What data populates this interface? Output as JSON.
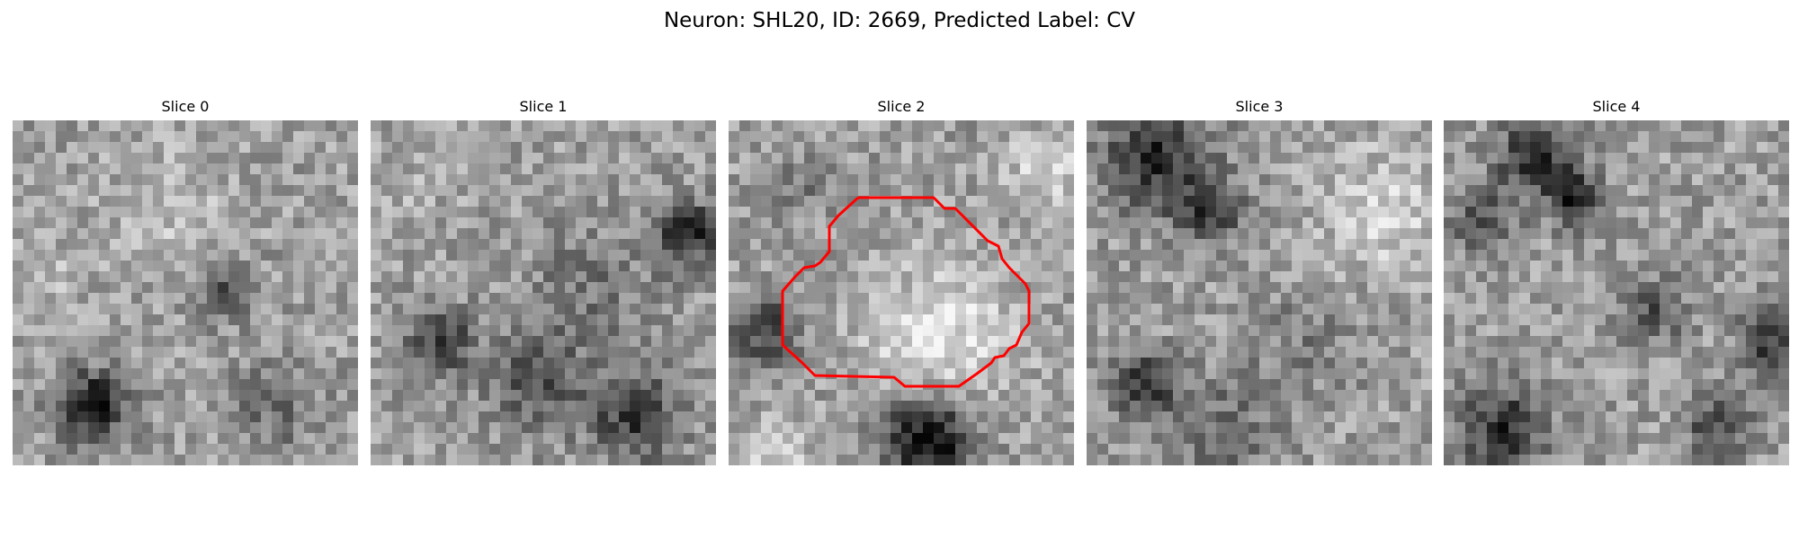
{
  "figure": {
    "title": "Neuron: SHL20, ID: 2669, Predicted Label: CV",
    "colormap": "grayscale",
    "contour_color": "#ff0000"
  },
  "panels": [
    {
      "title": "Slice 0",
      "has_contour": false
    },
    {
      "title": "Slice 1",
      "has_contour": false
    },
    {
      "title": "Slice 2",
      "has_contour": true
    },
    {
      "title": "Slice 3",
      "has_contour": false
    },
    {
      "title": "Slice 4",
      "has_contour": false
    }
  ]
}
